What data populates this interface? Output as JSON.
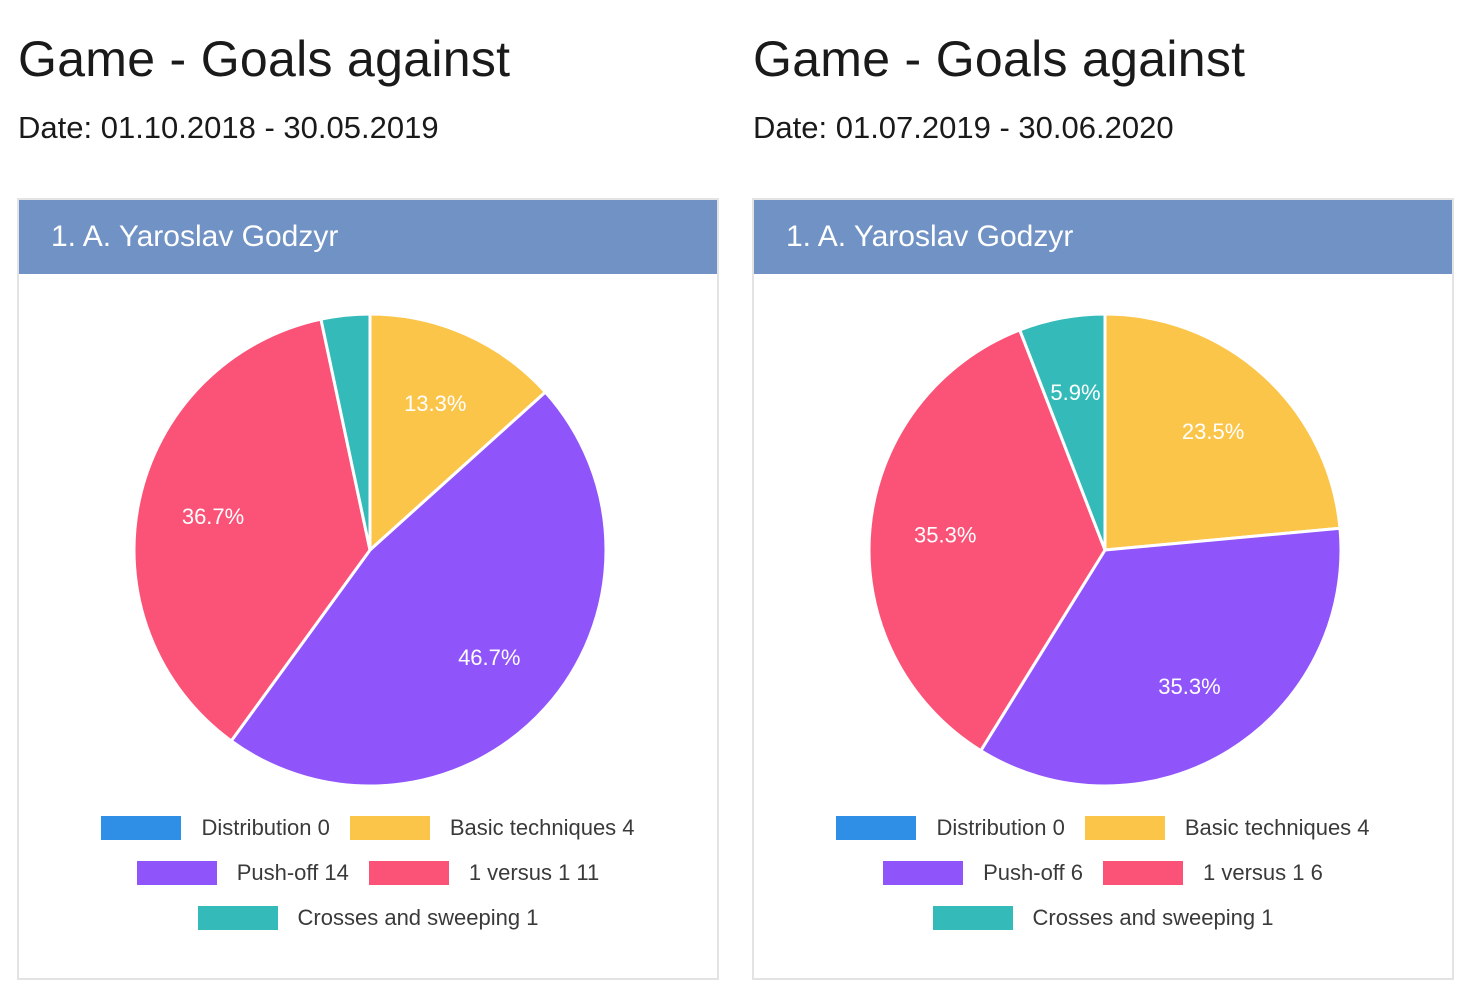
{
  "chart_data": [
    {
      "type": "pie",
      "title": "Game - Goals against",
      "subtitle": "Date: 01.10.2018 - 30.05.2019",
      "header": "1. A. Yaroslav Godzyr",
      "categories": [
        "Distribution",
        "Basic techniques",
        "Push-off",
        "1 versus 1",
        "Crosses and sweeping"
      ],
      "values": [
        0,
        4,
        14,
        11,
        1
      ],
      "legend_labels": [
        "Distribution 0",
        "Basic techniques 4",
        "Push-off 14",
        "1 versus 1 11",
        "Crosses and sweeping 1"
      ],
      "slice_labels": [
        "",
        "13.3%",
        "46.7%",
        "36.7%",
        ""
      ],
      "colors": [
        "#2f8fe6",
        "#fbc54a",
        "#8f55fb",
        "#fb5377",
        "#34bbb9"
      ],
      "legend_placement": "bottom"
    },
    {
      "type": "pie",
      "title": "Game - Goals against",
      "subtitle": "Date: 01.07.2019 - 30.06.2020",
      "header": "1. A. Yaroslav Godzyr",
      "categories": [
        "Distribution",
        "Basic techniques",
        "Push-off",
        "1 versus 1",
        "Crosses and sweeping"
      ],
      "values": [
        0,
        4,
        6,
        6,
        1
      ],
      "legend_labels": [
        "Distribution 0",
        "Basic techniques 4",
        "Push-off 6",
        "1 versus 1 6",
        "Crosses and sweeping 1"
      ],
      "slice_labels": [
        "",
        "23.5%",
        "35.3%",
        "35.3%",
        "5.9%"
      ],
      "colors": [
        "#2f8fe6",
        "#fbc54a",
        "#8f55fb",
        "#fb5377",
        "#34bbb9"
      ],
      "legend_placement": "bottom"
    }
  ]
}
